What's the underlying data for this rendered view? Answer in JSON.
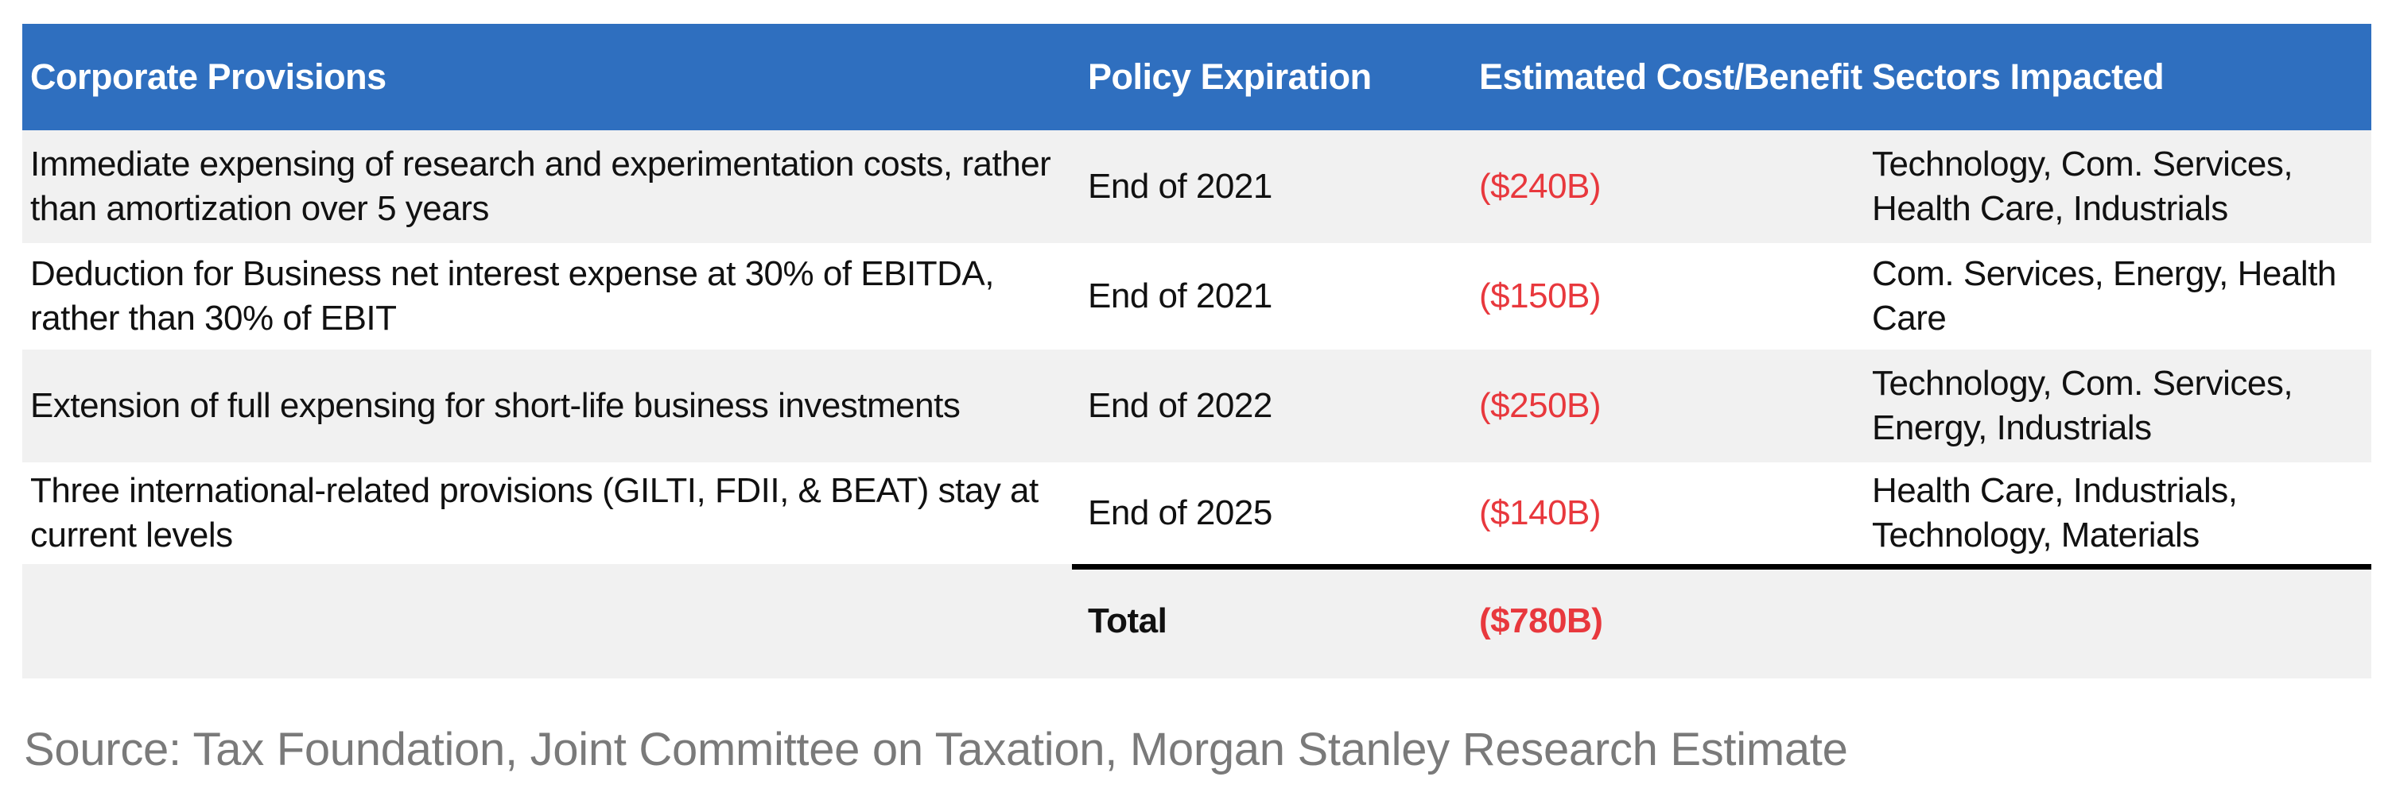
{
  "table": {
    "headers": {
      "provision": "Corporate Provisions",
      "expiration": "Policy Expiration",
      "cost": "Estimated Cost/Benefit",
      "sectors": "Sectors Impacted"
    },
    "rows": [
      {
        "provision": "Immediate expensing of research and experimentation costs, rather than amortization over 5 years",
        "expiration": "End of 2021",
        "cost": "($240B)",
        "sectors": "Technology, Com. Services, Health Care, Industrials"
      },
      {
        "provision": "Deduction for Business net interest expense at 30% of EBITDA, rather than 30% of EBIT",
        "expiration": "End of 2021",
        "cost": "($150B)",
        "sectors": "Com. Services, Energy, Health Care"
      },
      {
        "provision": "Extension of full expensing for short-life business investments",
        "expiration": "End of 2022",
        "cost": "($250B)",
        "sectors": "Technology, Com. Services, Energy, Industrials"
      },
      {
        "provision": "Three international-related provisions (GILTI, FDII, & BEAT) stay at current levels",
        "expiration": "End of 2025",
        "cost": "($140B)",
        "sectors": "Health Care, Industrials, Technology, Materials"
      }
    ],
    "total": {
      "label": "Total",
      "cost": "($780B)"
    }
  },
  "source": "Source: Tax Foundation, Joint Committee on Taxation, Morgan Stanley Research Estimate",
  "colors": {
    "header_bg": "#2f6fbf",
    "negative": "#e8383d",
    "band": "#f1f1f1"
  }
}
